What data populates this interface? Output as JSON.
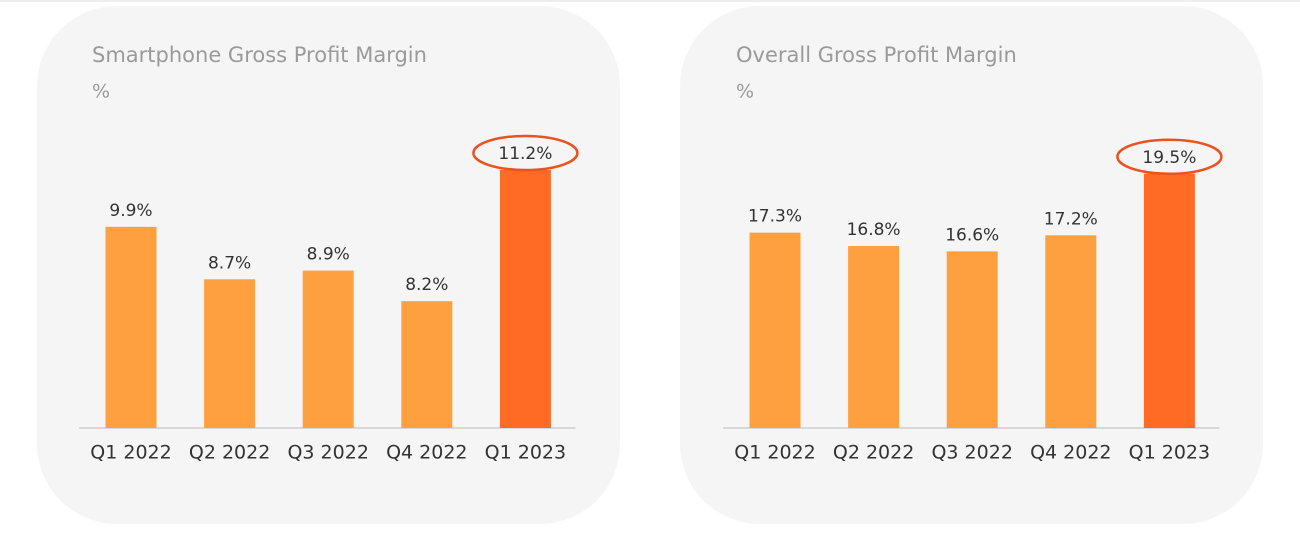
{
  "chart_data": [
    {
      "type": "bar",
      "title": "Smartphone Gross Profit Margin",
      "subtitle": "%",
      "categories": [
        "Q1 2022",
        "Q2 2022",
        "Q3 2022",
        "Q4 2022",
        "Q1 2023"
      ],
      "values": [
        9.9,
        8.7,
        8.9,
        8.2,
        11.2
      ],
      "value_labels": [
        "9.9%",
        "8.7%",
        "8.9%",
        "8.2%",
        "11.2%"
      ],
      "colors": [
        "#ffa040",
        "#ffa040",
        "#ffa040",
        "#ffa040",
        "#ff6a25"
      ],
      "ylim": [
        5.3,
        12
      ]
    },
    {
      "type": "bar",
      "title": "Overall Gross Profit Margin",
      "subtitle": "%",
      "categories": [
        "Q1 2022",
        "Q2 2022",
        "Q3 2022",
        "Q4 2022",
        "Q1 2023"
      ],
      "values": [
        17.3,
        16.8,
        16.6,
        17.2,
        19.5
      ],
      "value_labels": [
        "17.3%",
        "16.8%",
        "16.6%",
        "17.2%",
        "19.5%"
      ],
      "colors": [
        "#ffa040",
        "#ffa040",
        "#ffa040",
        "#ffa040",
        "#ff6a25"
      ],
      "ylim": [
        10,
        20.5
      ]
    }
  ]
}
